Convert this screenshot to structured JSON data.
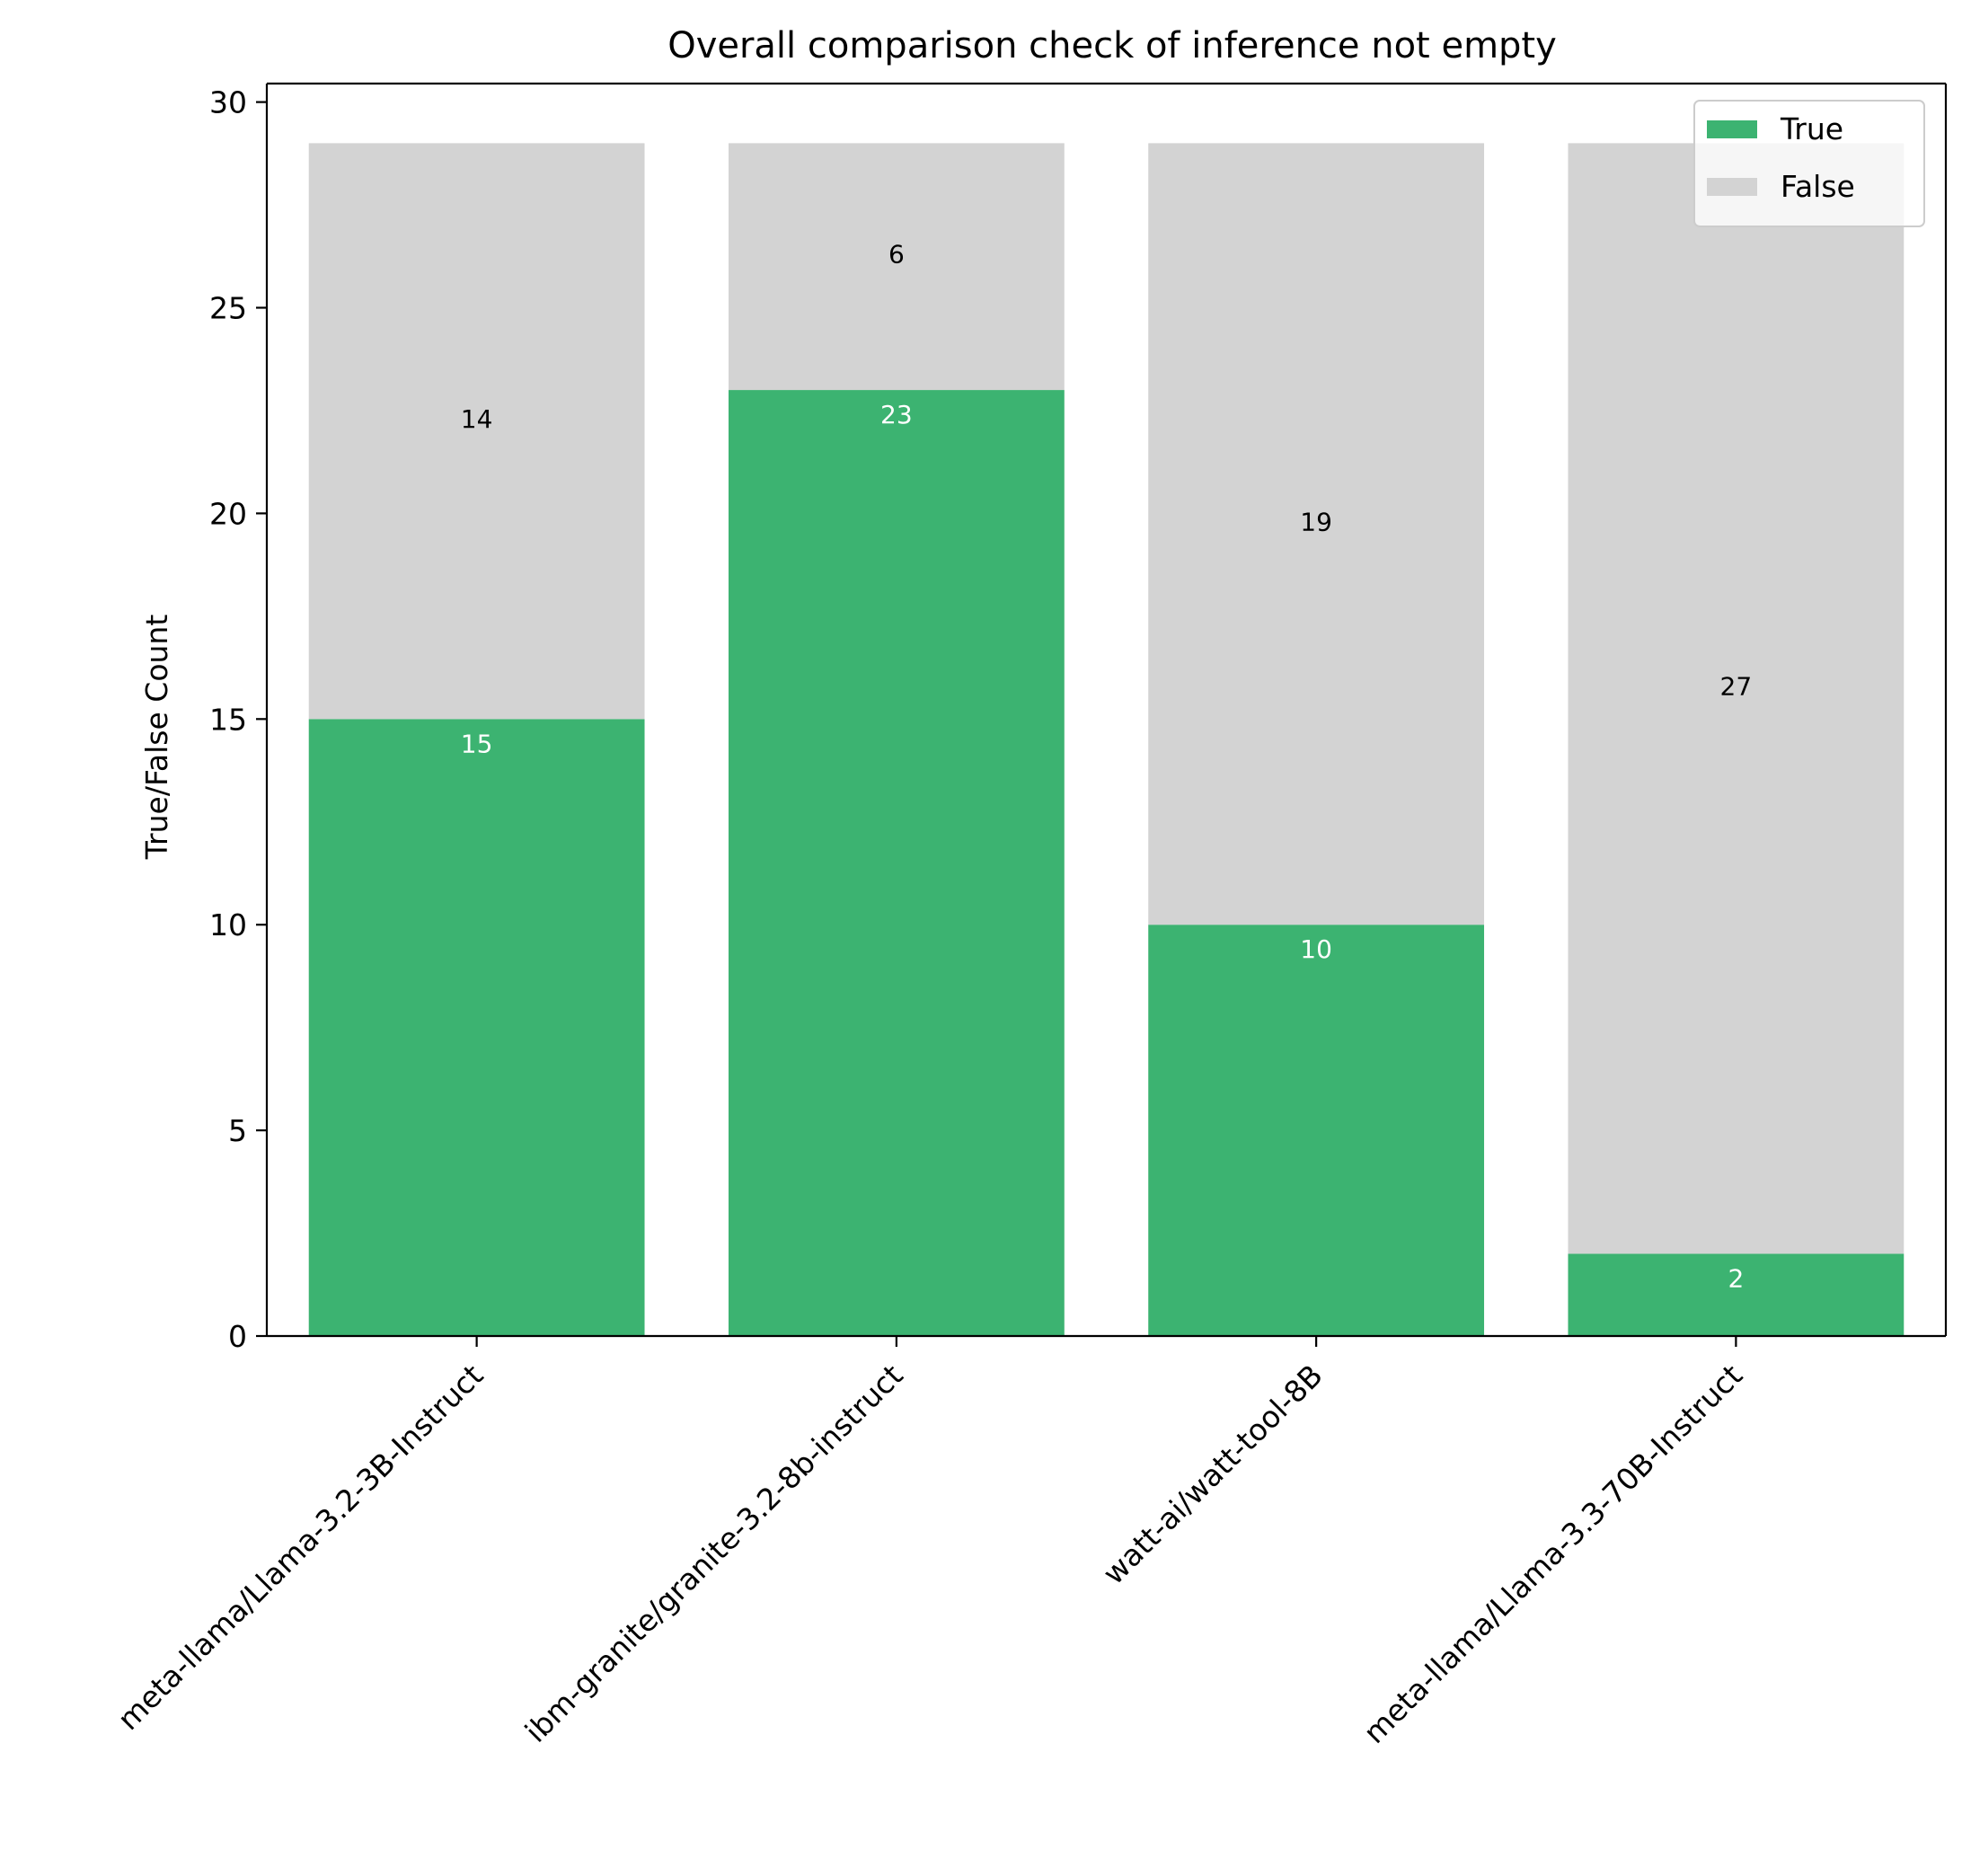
{
  "chart_data": {
    "type": "bar",
    "stacked": true,
    "title": "Overall comparison check of inference not empty",
    "xlabel": "",
    "ylabel": "True/False Count",
    "categories": [
      "meta-llama/Llama-3.2-3B-Instruct",
      "ibm-granite/granite-3.2-8b-instruct",
      "watt-ai/watt-tool-8B",
      "meta-llama/Llama-3.3-70B-Instruct"
    ],
    "series": [
      {
        "name": "True",
        "values": [
          15,
          23,
          10,
          2
        ],
        "color": "#3cb371",
        "label_color": "#ffffff"
      },
      {
        "name": "False",
        "values": [
          14,
          6,
          19,
          27
        ],
        "color": "#d3d3d3",
        "label_color": "#000000"
      }
    ],
    "ylim": [
      0,
      30.45
    ],
    "yticks": [
      0,
      5,
      10,
      15,
      20,
      25,
      30
    ],
    "grid": false,
    "legend": "top-right"
  }
}
